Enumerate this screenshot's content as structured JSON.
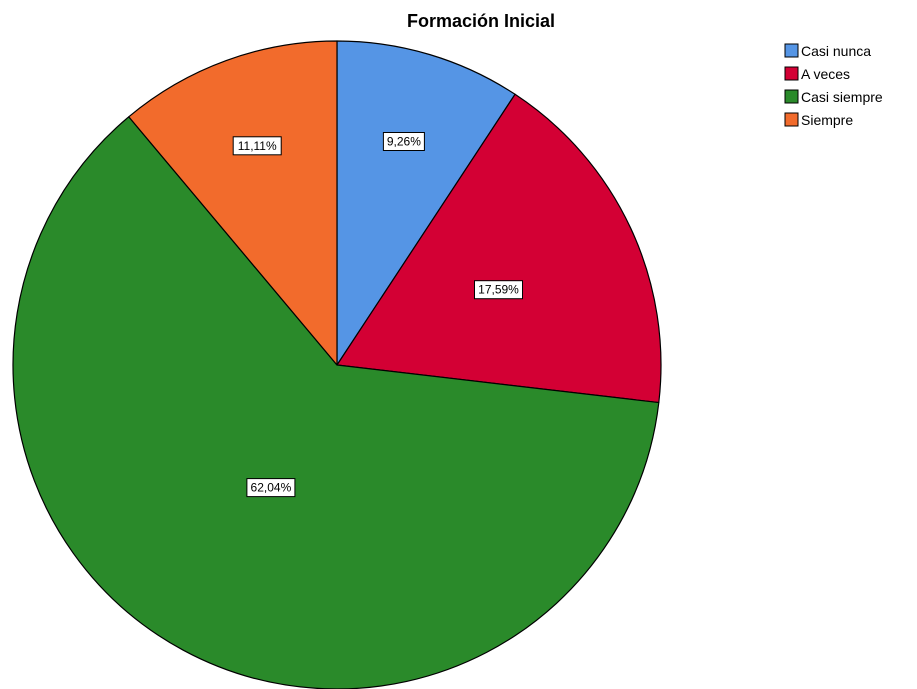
{
  "chart_data": {
    "type": "pie",
    "title": "Formación Inicial",
    "categories": [
      "Casi nunca",
      "A veces",
      "Casi siempre",
      "Siempre"
    ],
    "values": [
      9.26,
      17.59,
      62.04,
      11.11
    ],
    "labels": [
      "9,26%",
      "17,59%",
      "62,04%",
      "11,11%"
    ],
    "colors": [
      "#5595e5",
      "#d30034",
      "#2a8a2a",
      "#f26b2c"
    ],
    "start_angle": "12 o'clock",
    "direction": "clockwise",
    "legend": {
      "position": "top-right",
      "entries": [
        "Casi nunca",
        "A veces",
        "Casi siempre",
        "Siempre"
      ]
    }
  }
}
